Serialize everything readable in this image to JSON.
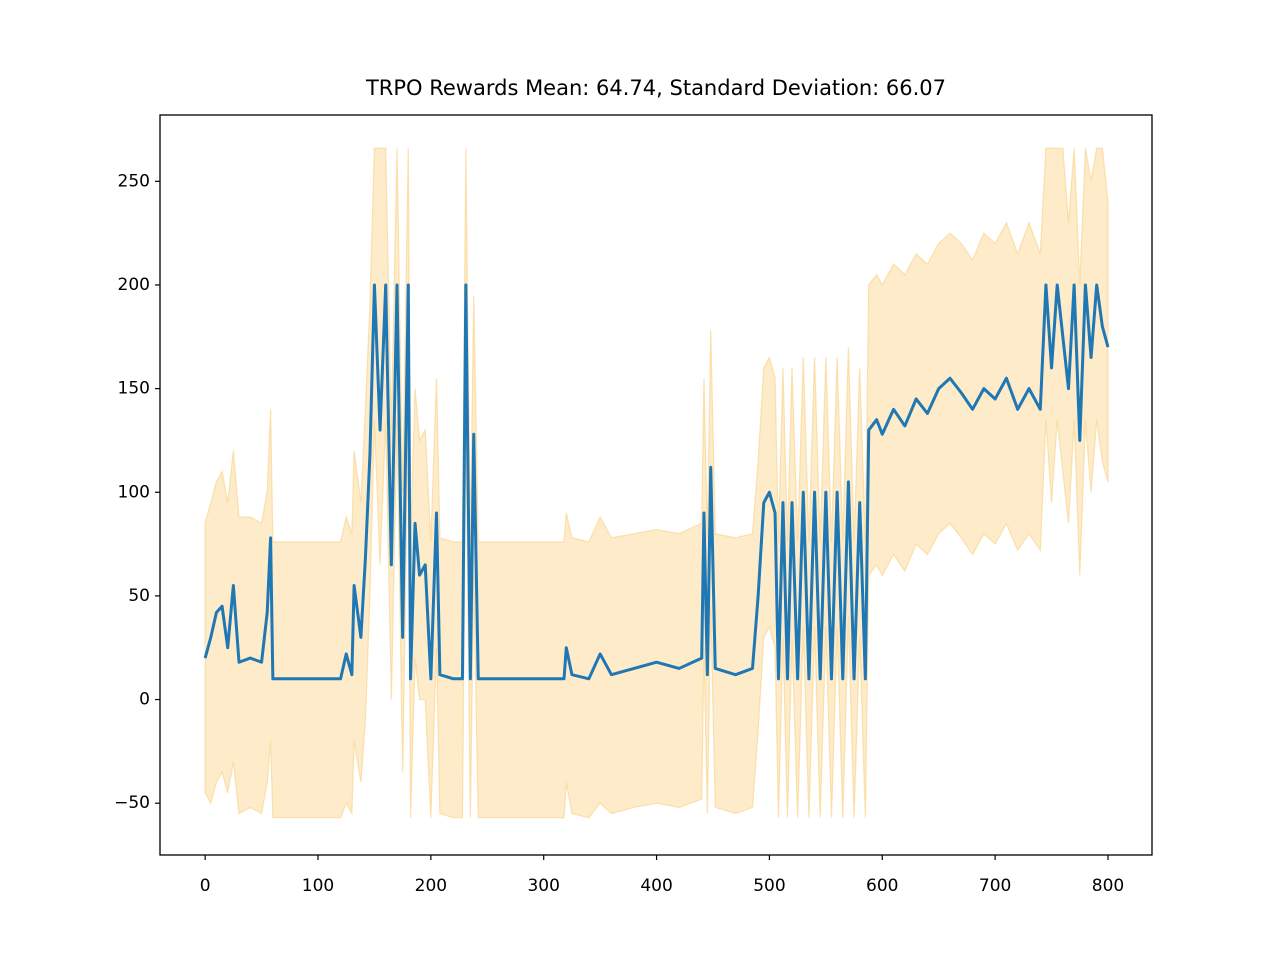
{
  "chart_data": {
    "type": "line",
    "title": "TRPO Rewards Mean: 64.74, Standard Deviation: 66.07",
    "x": [
      0,
      5,
      10,
      15,
      20,
      25,
      30,
      40,
      50,
      55,
      58,
      60,
      80,
      100,
      120,
      125,
      130,
      132,
      138,
      142,
      146,
      150,
      155,
      160,
      165,
      170,
      175,
      180,
      182,
      186,
      190,
      195,
      200,
      205,
      208,
      220,
      228,
      231,
      235,
      238,
      242,
      260,
      300,
      318,
      320,
      325,
      340,
      350,
      360,
      380,
      400,
      420,
      440,
      442,
      445,
      448,
      452,
      470,
      485,
      490,
      495,
      500,
      505,
      508,
      512,
      516,
      520,
      525,
      530,
      535,
      540,
      545,
      550,
      555,
      560,
      565,
      570,
      575,
      580,
      585,
      588,
      595,
      600,
      610,
      620,
      630,
      640,
      650,
      660,
      670,
      680,
      690,
      700,
      710,
      720,
      730,
      740,
      745,
      750,
      755,
      760,
      765,
      770,
      775,
      780,
      785,
      790,
      795,
      800
    ],
    "series": [
      {
        "color": "#1f77b4",
        "values": [
          20,
          30,
          42,
          45,
          25,
          55,
          18,
          20,
          18,
          42,
          78,
          10,
          10,
          10,
          10,
          22,
          12,
          55,
          30,
          68,
          118,
          200,
          130,
          200,
          65,
          200,
          30,
          200,
          10,
          85,
          60,
          65,
          10,
          90,
          12,
          10,
          10,
          200,
          10,
          128,
          10,
          10,
          10,
          10,
          25,
          12,
          10,
          22,
          12,
          15,
          18,
          15,
          20,
          90,
          12,
          112,
          15,
          12,
          15,
          50,
          95,
          100,
          90,
          10,
          95,
          10,
          95,
          10,
          100,
          10,
          100,
          10,
          100,
          10,
          100,
          10,
          105,
          10,
          95,
          10,
          130,
          135,
          128,
          140,
          132,
          145,
          138,
          150,
          155,
          148,
          140,
          150,
          145,
          155,
          140,
          150,
          140,
          200,
          160,
          200,
          175,
          150,
          200,
          125,
          200,
          165,
          200,
          180,
          170
        ]
      }
    ],
    "band": {
      "color": "#fdebc9",
      "edge_color": "#fbd592",
      "lower": [
        -45,
        -50,
        -40,
        -35,
        -45,
        -30,
        -55,
        -52,
        -55,
        -40,
        -20,
        -57,
        -57,
        -57,
        -57,
        -50,
        -55,
        -20,
        -40,
        -10,
        50,
        135,
        65,
        135,
        0,
        135,
        -35,
        135,
        -57,
        20,
        0,
        0,
        -57,
        25,
        -55,
        -57,
        -57,
        135,
        -57,
        60,
        -57,
        -57,
        -57,
        -57,
        -40,
        -55,
        -57,
        -50,
        -55,
        -52,
        -50,
        -52,
        -48,
        25,
        -55,
        45,
        -52,
        -55,
        -52,
        -15,
        30,
        35,
        25,
        -57,
        30,
        -57,
        30,
        -57,
        35,
        -57,
        35,
        -57,
        35,
        -57,
        35,
        -57,
        40,
        -57,
        30,
        -57,
        60,
        65,
        60,
        70,
        62,
        75,
        70,
        80,
        85,
        78,
        70,
        80,
        75,
        85,
        72,
        80,
        72,
        135,
        95,
        135,
        110,
        85,
        135,
        60,
        135,
        100,
        135,
        115,
        105
      ],
      "upper": [
        85,
        95,
        105,
        110,
        95,
        120,
        88,
        88,
        85,
        100,
        140,
        76,
        76,
        76,
        76,
        88,
        80,
        120,
        95,
        140,
        190,
        266,
        266,
        266,
        130,
        266,
        100,
        266,
        76,
        150,
        125,
        130,
        76,
        155,
        78,
        76,
        76,
        266,
        76,
        195,
        76,
        76,
        76,
        76,
        90,
        78,
        76,
        88,
        78,
        80,
        82,
        80,
        85,
        155,
        78,
        178,
        80,
        78,
        80,
        115,
        160,
        165,
        155,
        76,
        160,
        76,
        160,
        76,
        165,
        76,
        165,
        76,
        165,
        76,
        165,
        76,
        170,
        76,
        160,
        76,
        200,
        205,
        200,
        210,
        205,
        215,
        210,
        220,
        225,
        220,
        212,
        225,
        220,
        230,
        215,
        230,
        215,
        266,
        266,
        266,
        266,
        230,
        266,
        200,
        266,
        250,
        266,
        266,
        240
      ]
    },
    "xlim": [
      -40,
      839
    ],
    "ylim": [
      -75,
      282
    ],
    "xticks": [
      0,
      100,
      200,
      300,
      400,
      500,
      600,
      700,
      800
    ],
    "yticks": [
      {
        "value": -50,
        "label": "−50"
      },
      0,
      50,
      100,
      150,
      200,
      250
    ]
  }
}
